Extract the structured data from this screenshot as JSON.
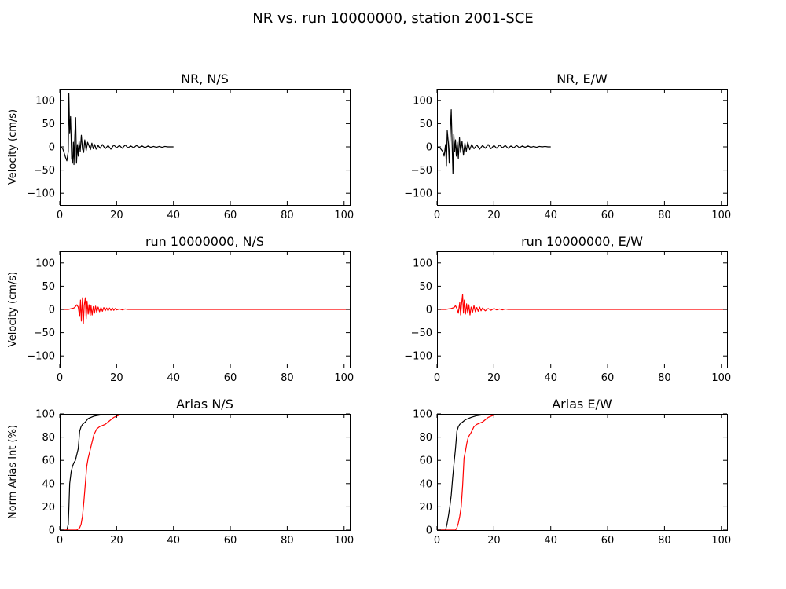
{
  "figure": {
    "title": "NR vs. run 10000000, station 2001-SCE"
  },
  "colors": {
    "observed": "#000000",
    "simulated": "#ff0000",
    "background": "#ffffff"
  },
  "chart_data": [
    {
      "id": "nr-ns",
      "type": "line",
      "title": "NR, N/S",
      "xlabel": "",
      "ylabel": "Velocity (cm/s)",
      "xlim": [
        0,
        102
      ],
      "ylim": [
        -125,
        125
      ],
      "xticks": [
        "0",
        "20",
        "40",
        "60",
        "80",
        "100"
      ],
      "yticks": [
        "100",
        "50",
        "0",
        "−50",
        "−100"
      ],
      "series": [
        {
          "name": "NR",
          "color": "#000000",
          "x": [
            0,
            1,
            1.5,
            2,
            2.5,
            3,
            3.2,
            3.5,
            3.8,
            4.2,
            4.5,
            4.8,
            5.0,
            5.3,
            5.6,
            5.9,
            6.2,
            6.5,
            6.8,
            7.2,
            7.6,
            8.0,
            8.4,
            8.8,
            9.3,
            9.8,
            10.3,
            10.8,
            11.3,
            11.8,
            12.3,
            12.8,
            13.5,
            14.2,
            15,
            16,
            17,
            18,
            19,
            20,
            21,
            22,
            23,
            24,
            25,
            26,
            27,
            28,
            29,
            30,
            31,
            32,
            33,
            34,
            35,
            36,
            37,
            38,
            39,
            40
          ],
          "values": [
            0,
            -3,
            -12,
            -22,
            -30,
            -10,
            115,
            30,
            65,
            -25,
            -35,
            10,
            -38,
            25,
            63,
            -35,
            5,
            -20,
            12,
            -10,
            25,
            -5,
            -12,
            15,
            -8,
            10,
            2,
            -6,
            8,
            -4,
            5,
            -5,
            3,
            -3,
            5,
            -4,
            3,
            -5,
            4,
            -2,
            3,
            -3,
            4,
            -2,
            2,
            -2,
            3,
            -1,
            2,
            -2,
            2,
            -1,
            1,
            -1,
            1,
            -1,
            1,
            0,
            0,
            0
          ]
        }
      ]
    },
    {
      "id": "nr-ew",
      "type": "line",
      "title": "NR, E/W",
      "xlabel": "",
      "ylabel": "",
      "xlim": [
        0,
        102
      ],
      "ylim": [
        -125,
        125
      ],
      "xticks": [
        "0",
        "20",
        "40",
        "60",
        "80",
        "100"
      ],
      "yticks": [
        "100",
        "50",
        "0",
        "−50",
        "−100"
      ],
      "series": [
        {
          "name": "NR",
          "color": "#000000",
          "x": [
            0,
            1,
            1.5,
            2,
            2.5,
            3,
            3.3,
            3.6,
            4.0,
            4.3,
            4.6,
            5.0,
            5.3,
            5.6,
            5.9,
            6.2,
            6.5,
            6.8,
            7.1,
            7.5,
            7.9,
            8.3,
            8.8,
            9.3,
            9.8,
            10.3,
            10.8,
            11.5,
            12.2,
            13,
            14,
            15,
            16,
            17,
            18,
            19,
            20,
            21,
            22,
            23,
            24,
            25,
            26,
            27,
            28,
            29,
            30,
            31,
            32,
            33,
            34,
            35,
            36,
            37,
            38,
            39,
            40
          ],
          "values": [
            0,
            -2,
            -6,
            -10,
            -20,
            5,
            -42,
            35,
            8,
            -35,
            20,
            80,
            10,
            -58,
            28,
            -10,
            15,
            -20,
            10,
            -25,
            20,
            -12,
            12,
            -18,
            8,
            -10,
            10,
            -6,
            5,
            -4,
            4,
            -5,
            3,
            -3,
            5,
            -4,
            3,
            -3,
            4,
            -2,
            3,
            -3,
            2,
            -2,
            3,
            -2,
            2,
            -1,
            2,
            -1,
            1,
            -1,
            1,
            0,
            1,
            0,
            0
          ]
        }
      ]
    },
    {
      "id": "run-ns",
      "type": "line",
      "title": "run 10000000, N/S",
      "xlabel": "",
      "ylabel": "Velocity (cm/s)",
      "xlim": [
        0,
        102
      ],
      "ylim": [
        -125,
        125
      ],
      "xticks": [
        "0",
        "20",
        "40",
        "60",
        "80",
        "100"
      ],
      "yticks": [
        "100",
        "50",
        "0",
        "−50",
        "−100"
      ],
      "series": [
        {
          "name": "run 10000000",
          "color": "#ff0000",
          "x": [
            0,
            3,
            5,
            5.5,
            6,
            6.5,
            7,
            7.3,
            7.6,
            8.0,
            8.3,
            8.6,
            9.0,
            9.3,
            9.6,
            10.0,
            10.3,
            10.7,
            11.0,
            11.4,
            11.8,
            12.2,
            12.6,
            13.0,
            13.5,
            14,
            14.5,
            15,
            15.5,
            16,
            16.5,
            17,
            17.5,
            18,
            18.5,
            19,
            19.5,
            20,
            21,
            22,
            23,
            24,
            25,
            30,
            40,
            60,
            80,
            102
          ],
          "values": [
            0,
            0,
            3,
            6,
            10,
            5,
            -15,
            20,
            -25,
            25,
            -30,
            8,
            25,
            -20,
            18,
            -10,
            10,
            -14,
            8,
            -12,
            6,
            -8,
            7,
            -6,
            5,
            -5,
            4,
            -4,
            4,
            -3,
            3,
            -3,
            3,
            -2,
            3,
            -2,
            2,
            -1,
            1,
            -1,
            1,
            0,
            0,
            0,
            0,
            0,
            0,
            0
          ]
        }
      ]
    },
    {
      "id": "run-ew",
      "type": "line",
      "title": "run 10000000, E/W",
      "xlabel": "",
      "ylabel": "",
      "xlim": [
        0,
        102
      ],
      "ylim": [
        -125,
        125
      ],
      "xticks": [
        "0",
        "20",
        "40",
        "60",
        "80",
        "100"
      ],
      "yticks": [
        "100",
        "50",
        "0",
        "−50",
        "−100"
      ],
      "series": [
        {
          "name": "run 10000000",
          "color": "#ff0000",
          "x": [
            0,
            3,
            5,
            6,
            6.5,
            7,
            7.5,
            8,
            8.3,
            8.6,
            9.0,
            9.3,
            9.6,
            10.0,
            10.4,
            10.8,
            11.2,
            11.6,
            12.0,
            12.5,
            13,
            13.5,
            14,
            14.5,
            15,
            15.5,
            16,
            17,
            18,
            19,
            20,
            21,
            22,
            23,
            24,
            25,
            30,
            40,
            60,
            80,
            102
          ],
          "values": [
            0,
            0,
            2,
            4,
            8,
            2,
            -8,
            15,
            -12,
            10,
            32,
            -8,
            20,
            -10,
            12,
            -8,
            10,
            -12,
            5,
            -6,
            8,
            -5,
            4,
            -4,
            5,
            -3,
            3,
            -3,
            2,
            -2,
            2,
            -1,
            1,
            -1,
            1,
            0,
            0,
            0,
            0,
            0,
            0
          ]
        }
      ]
    },
    {
      "id": "arias-ns",
      "type": "line",
      "title": "Arias N/S",
      "xlabel": "",
      "ylabel": "Norm Arias Int (%)",
      "xlim": [
        0,
        102
      ],
      "ylim": [
        0,
        100
      ],
      "xticks": [
        "0",
        "20",
        "40",
        "60",
        "80",
        "100"
      ],
      "yticks": [
        "100",
        "80",
        "60",
        "40",
        "20",
        "0"
      ],
      "series": [
        {
          "name": "NR",
          "color": "#000000",
          "x": [
            0,
            2.5,
            3.0,
            3.2,
            3.5,
            4.0,
            4.5,
            5.0,
            5.5,
            6.0,
            6.5,
            7.0,
            7.5,
            8.0,
            9.0,
            10,
            12,
            14,
            16,
            18,
            20,
            22,
            24,
            102
          ],
          "values": [
            0,
            0,
            5,
            18,
            40,
            50,
            55,
            58,
            60,
            65,
            70,
            85,
            89,
            91,
            93,
            96,
            98,
            99,
            99.5,
            99.8,
            100,
            100,
            100,
            100
          ]
        },
        {
          "name": "run 10000000",
          "color": "#ff0000",
          "x": [
            0,
            6,
            7,
            7.5,
            8,
            8.5,
            9,
            9.5,
            10,
            10.5,
            11,
            12,
            13,
            14,
            15,
            16,
            17,
            18,
            19,
            20,
            21,
            22,
            23,
            25,
            102
          ],
          "values": [
            0,
            0,
            2,
            5,
            12,
            25,
            40,
            55,
            62,
            67,
            72,
            82,
            87,
            89,
            90,
            91,
            93,
            95,
            97,
            98,
            99,
            99.5,
            100,
            100,
            100
          ]
        }
      ]
    },
    {
      "id": "arias-ew",
      "type": "line",
      "title": "Arias E/W",
      "xlabel": "",
      "ylabel": "",
      "xlim": [
        0,
        102
      ],
      "ylim": [
        0,
        100
      ],
      "xticks": [
        "0",
        "20",
        "40",
        "60",
        "80",
        "100"
      ],
      "yticks": [
        "100",
        "80",
        "60",
        "40",
        "20",
        "0"
      ],
      "series": [
        {
          "name": "NR",
          "color": "#000000",
          "x": [
            0,
            3,
            3.5,
            4,
            4.5,
            5,
            5.5,
            6,
            6.5,
            7,
            7.5,
            8,
            9,
            10,
            11,
            12,
            14,
            16,
            18,
            20,
            25,
            30,
            102
          ],
          "values": [
            0,
            0,
            5,
            12,
            20,
            30,
            45,
            58,
            70,
            85,
            89,
            91,
            93,
            95,
            96,
            97,
            98.5,
            99.2,
            99.6,
            100,
            100,
            100,
            100
          ]
        },
        {
          "name": "run 10000000",
          "color": "#ff0000",
          "x": [
            0,
            6.5,
            7,
            7.5,
            8,
            8.5,
            9,
            9.5,
            10,
            10.5,
            11,
            12,
            13,
            14,
            15,
            16,
            17,
            18,
            19,
            20,
            22,
            25,
            102
          ],
          "values": [
            0,
            0,
            2,
            6,
            12,
            20,
            38,
            62,
            68,
            75,
            80,
            84,
            89,
            91,
            92,
            93,
            95,
            97,
            98,
            99,
            99.5,
            100,
            100
          ]
        }
      ]
    }
  ]
}
